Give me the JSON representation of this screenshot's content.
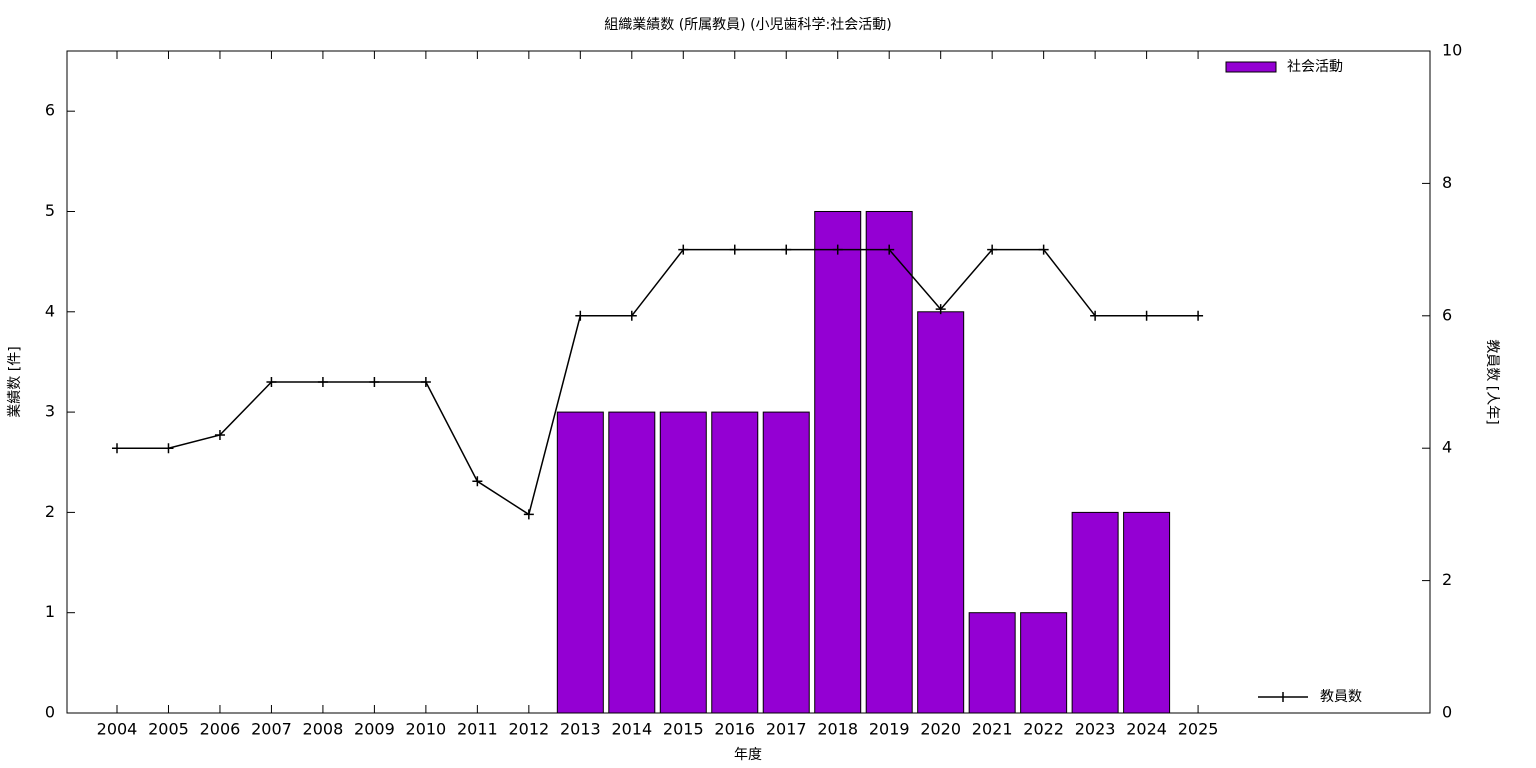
{
  "chart_data": {
    "type": "bar_line",
    "title": "組織業績数 (所属教員) (小児歯科学:社会活動)",
    "x_label": "年度",
    "y_label": "業績数 [件]",
    "y2_label": "教員数 [人年]",
    "categories": [
      "2004",
      "2005",
      "2006",
      "2007",
      "2008",
      "2009",
      "2010",
      "2011",
      "2012",
      "2013",
      "2014",
      "2015",
      "2016",
      "2017",
      "2018",
      "2019",
      "2020",
      "2021",
      "2022",
      "2023",
      "2024",
      "2025"
    ],
    "series": [
      {
        "name": "社会活動",
        "type": "bar",
        "color": "#9400d3",
        "values": [
          null,
          null,
          null,
          null,
          null,
          null,
          null,
          null,
          null,
          3,
          3,
          3,
          3,
          3,
          5,
          5,
          4,
          1,
          1,
          2,
          2,
          null
        ]
      },
      {
        "name": "教員数",
        "type": "line",
        "axis": "y2",
        "color": "#000000",
        "values": [
          4,
          4,
          4.2,
          5,
          5,
          5,
          5,
          3.5,
          3,
          6,
          6,
          7,
          7,
          7,
          7,
          7,
          6.1,
          7,
          7,
          6,
          6,
          6
        ]
      }
    ],
    "ylim": [
      0,
      6.6
    ],
    "yticks": [
      0,
      1,
      2,
      3,
      4,
      5,
      6
    ],
    "y2lim": [
      0,
      10
    ],
    "y2ticks": [
      0,
      2,
      4,
      6,
      8,
      10
    ],
    "grid": false
  }
}
